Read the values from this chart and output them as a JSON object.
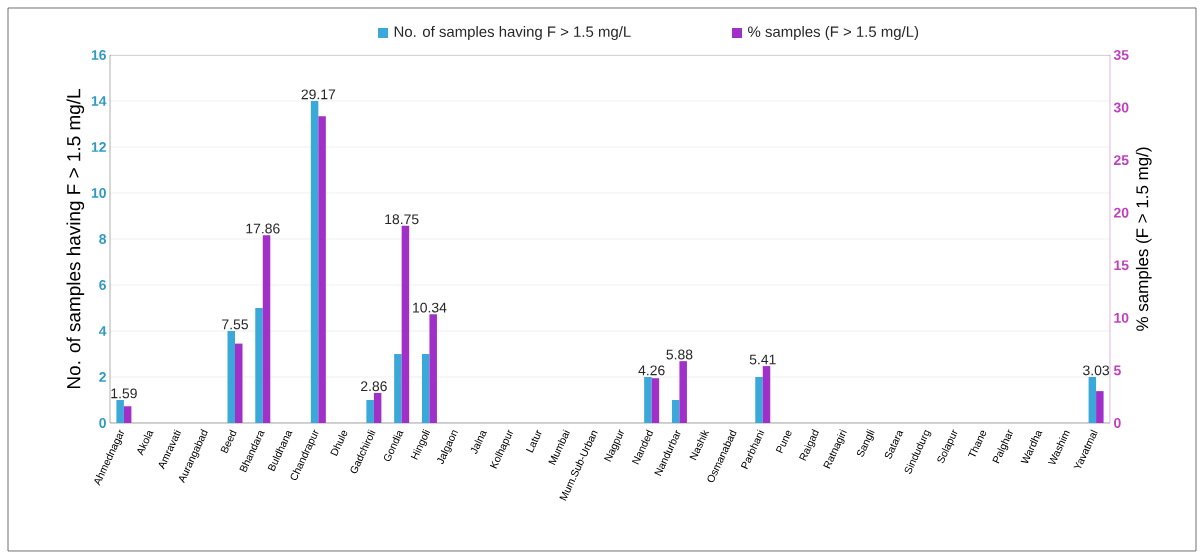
{
  "chart_data": {
    "type": "bar",
    "categories": [
      "Ahmednagar",
      "Akola",
      "Amravati",
      "Aurangabad",
      "Beed",
      "Bhandara",
      "Buldhana",
      "Chandrapur",
      "Dhule",
      "Gadchiroli",
      "Gondia",
      "Hingoli",
      "Jalgaon",
      "Jalna",
      "Kolhapur",
      "Latur",
      "Mumbai",
      "Mum.Sub-Urban",
      "Nagpur",
      "Nanded",
      "Nandurbar",
      "Nashik",
      "Osmanabad",
      "Parbhani",
      "Pune",
      "Raigad",
      "Ratnagiri",
      "Sangli",
      "Satara",
      "Sindudurg",
      "Solapur",
      "Thane",
      "Palghar",
      "Wardha",
      "Washim",
      "Yavatmal"
    ],
    "series": [
      {
        "name": "No. of samples having F > 1.5 mg/L",
        "color": "#3aa8d8",
        "values": [
          1,
          0,
          0,
          0,
          4,
          5,
          0,
          14,
          0,
          1,
          3,
          3,
          0,
          0,
          0,
          0,
          0,
          0,
          0,
          2,
          1,
          0,
          0,
          2,
          0,
          0,
          0,
          0,
          0,
          0,
          0,
          0,
          0,
          0,
          0,
          2
        ]
      },
      {
        "name": "% samples (F > 1.5 mg/L)",
        "color": "#a030c8",
        "axis": "y2",
        "values": [
          1.59,
          0,
          0,
          0,
          7.55,
          17.86,
          0,
          29.17,
          0,
          2.86,
          18.75,
          10.34,
          0,
          0,
          0,
          0,
          0,
          0,
          0,
          4.26,
          5.88,
          0,
          0,
          5.41,
          0,
          0,
          0,
          0,
          0,
          0,
          0,
          0,
          0,
          0,
          0,
          3.03
        ],
        "value_labels": [
          "1.59",
          null,
          null,
          null,
          "7.55",
          "17.86",
          null,
          "29.17",
          null,
          "2.86",
          "18.75",
          "10.34",
          null,
          null,
          null,
          null,
          null,
          null,
          null,
          "4.26",
          "5.88",
          null,
          null,
          "5.41",
          null,
          null,
          null,
          null,
          null,
          null,
          null,
          null,
          null,
          null,
          null,
          "3.03"
        ]
      }
    ],
    "ylabel": "No. of samples having F > 1.5 mg/L",
    "y2label": "% samples (F > 1.5 mg/)",
    "ylim": [
      0,
      16
    ],
    "yticks": [
      0,
      2,
      4,
      6,
      8,
      10,
      12,
      14,
      16
    ],
    "y2lim": [
      0,
      35
    ],
    "y2ticks": [
      0,
      5,
      10,
      15,
      20,
      25,
      30,
      35
    ],
    "grid": "y",
    "legend": "top"
  }
}
